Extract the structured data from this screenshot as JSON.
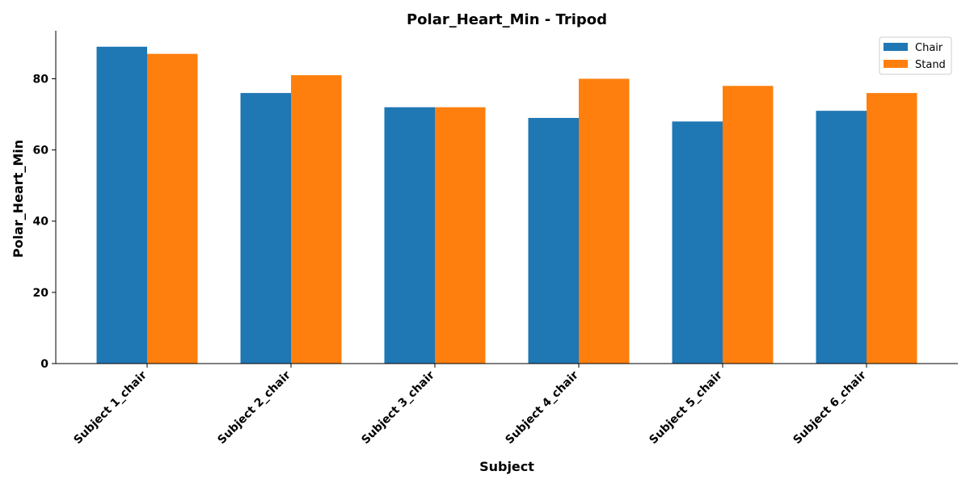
{
  "chart_data": {
    "type": "bar",
    "title": "Polar_Heart_Min - Tripod",
    "xlabel": "Subject",
    "ylabel": "Polar_Heart_Min",
    "categories": [
      "Subject 1_chair",
      "Subject 2_chair",
      "Subject 3_chair",
      "Subject 4_chair",
      "Subject 5_chair",
      "Subject 6_chair"
    ],
    "series": [
      {
        "name": "Chair",
        "color": "#1f77b4",
        "values": [
          89,
          76,
          72,
          69,
          68,
          71
        ]
      },
      {
        "name": "Stand",
        "color": "#ff7f0e",
        "values": [
          87,
          81,
          72,
          80,
          78,
          76
        ]
      }
    ],
    "ylim": [
      0,
      93.5
    ],
    "yticks": [
      0,
      20,
      40,
      60,
      80
    ],
    "grid": false,
    "legend_position": "top-right"
  }
}
